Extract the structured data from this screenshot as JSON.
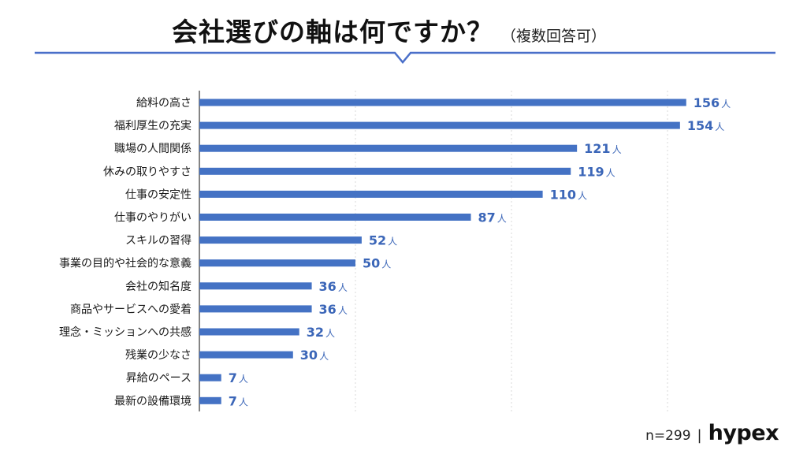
{
  "header": {
    "title": "会社選びの軸は何ですか？",
    "subtitle": "（複数回答可）"
  },
  "footer": {
    "sample": "n=299",
    "separator": "|",
    "brand": "hypex"
  },
  "colors": {
    "bar": "#4472c4",
    "value_text": "#3b66b8",
    "accent_line": "#4a6fc9",
    "grid": "#d9d9d9"
  },
  "chart_data": {
    "type": "bar",
    "orientation": "horizontal",
    "unit": "人",
    "categories": [
      "給料の高さ",
      "福利厚生の充実",
      "職場の人間関係",
      "休みの取りやすさ",
      "仕事の安定性",
      "仕事のやりがい",
      "スキルの習得",
      "事業の目的や社会的な意義",
      "会社の知名度",
      "商品やサービスへの愛着",
      "理念・ミッションへの共感",
      "残業の少なさ",
      "昇給のペース",
      "最新の設備環境"
    ],
    "values": [
      156,
      154,
      121,
      119,
      110,
      87,
      52,
      50,
      36,
      36,
      32,
      30,
      7,
      7
    ],
    "xlim": [
      0,
      200
    ],
    "grid": true,
    "xlabel": "",
    "ylabel": ""
  }
}
